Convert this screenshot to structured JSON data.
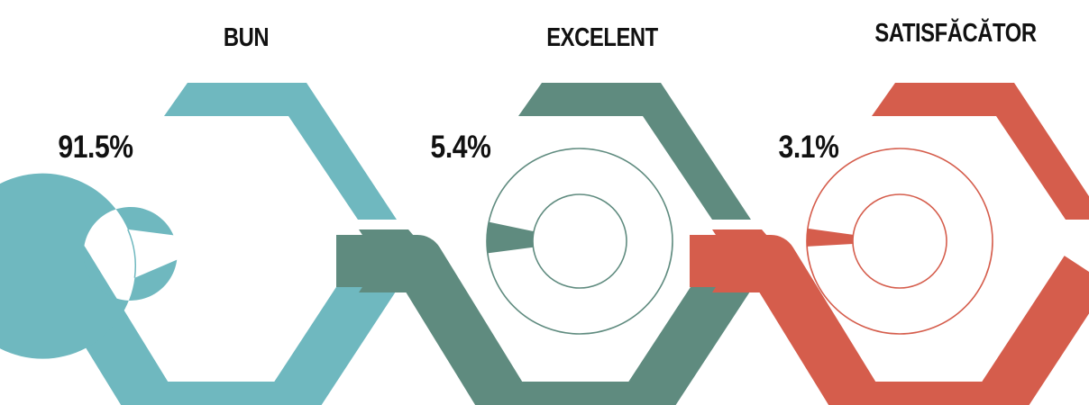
{
  "chart_data": {
    "type": "pie",
    "categories": [
      "BUN",
      "EXCELENT",
      "SATISFĂCĂTOR"
    ],
    "values": [
      91.5,
      5.4,
      3.1
    ],
    "value_labels": [
      "91.5%",
      "5.4%",
      "3.1%"
    ],
    "unit": "%",
    "colors": [
      "#6fb8bf",
      "#5f8b7f",
      "#d55d4c"
    ]
  }
}
